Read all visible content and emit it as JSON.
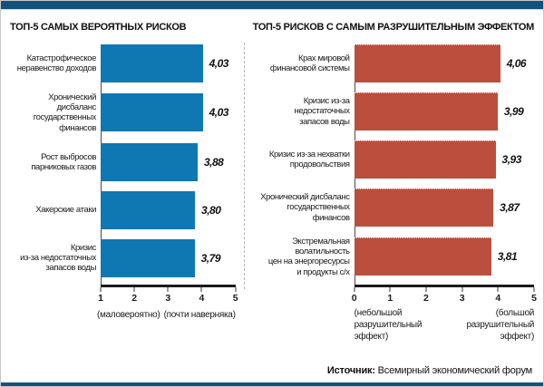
{
  "page": {
    "accent_color": "#14527e",
    "background_color": "#ffffff"
  },
  "source": {
    "label": "Источник:",
    "text": "Всемирный экономический форум"
  },
  "chart_data": [
    {
      "type": "bar",
      "orientation": "horizontal",
      "title": "ТОП-5 САМЫХ ВЕРОЯТНЫХ РИСКОВ",
      "bar_color": "#0f78b2",
      "xlim": [
        1,
        5
      ],
      "ticks": [
        1,
        2,
        3,
        4,
        5
      ],
      "grid": false,
      "legend": "none",
      "axis_caption_left": "(маловероятно)",
      "axis_caption_right": "(почти наверняка)",
      "categories": [
        "Катастрофическое\nнеравенство доходов",
        "Хронический дисбаланс\nгосударственных\nфинансов",
        "Рост выбросов\nпарниковых газов",
        "Хакерские атаки",
        "Кризис\nиз-за недостаточных\nзапасов воды"
      ],
      "values": [
        4.03,
        4.03,
        3.88,
        3.8,
        3.79
      ],
      "value_labels": [
        "4,03",
        "4,03",
        "3,88",
        "3,80",
        "3,79"
      ]
    },
    {
      "type": "bar",
      "orientation": "horizontal",
      "title": "ТОП-5 РИСКОВ С САМЫМ РАЗРУШИТЕЛЬНЫМ ЭФФЕКТОМ",
      "bar_color": "#bb4e3c",
      "xlim": [
        0,
        5
      ],
      "ticks": [
        0,
        1,
        2,
        3,
        4,
        5
      ],
      "grid": false,
      "legend": "none",
      "axis_caption_left": "(небольшой\nразрушительный\nэффект)",
      "axis_caption_right": "(большой\nразрушительный\nэффект)",
      "categories": [
        "Крах мировой\nфинансовой системы",
        "Кризис из-за недостаточных\nзапасов воды",
        "Кризис из-за нехватки\nпродовольствия",
        "Хронический дисбаланс\nгосударственных финансов",
        "Экстремальная волатильность\nцен на энергоресурсы\nи продукты с/х"
      ],
      "values": [
        4.06,
        3.99,
        3.93,
        3.87,
        3.81
      ],
      "value_labels": [
        "4,06",
        "3,99",
        "3,93",
        "3,87",
        "3,81"
      ]
    }
  ]
}
